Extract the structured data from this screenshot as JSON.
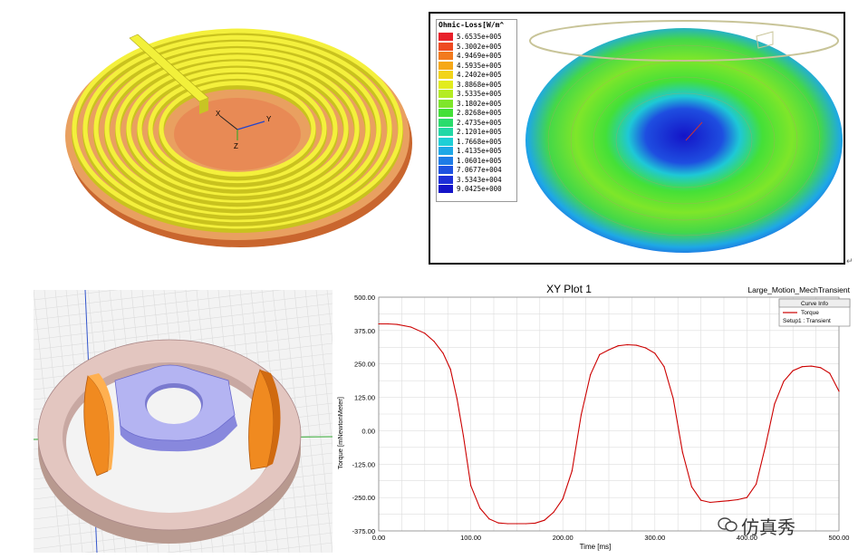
{
  "coil_panel": {
    "axis_labels": {
      "x": "X",
      "y": "Y",
      "z": "Z"
    }
  },
  "ohmic_loss": {
    "title": "Ohmic-Loss[W/m^",
    "legend": [
      {
        "value": "5.6535e+005",
        "color": "#e8202a"
      },
      {
        "value": "5.3002e+005",
        "color": "#ee4a22"
      },
      {
        "value": "4.9469e+005",
        "color": "#f27a1e"
      },
      {
        "value": "4.5935e+005",
        "color": "#f6a818"
      },
      {
        "value": "4.2402e+005",
        "color": "#f2d41a"
      },
      {
        "value": "3.8868e+005",
        "color": "#e2ec1e"
      },
      {
        "value": "3.5335e+005",
        "color": "#b4ec24"
      },
      {
        "value": "3.1802e+005",
        "color": "#7ee62a"
      },
      {
        "value": "2.8268e+005",
        "color": "#44e038"
      },
      {
        "value": "2.4735e+005",
        "color": "#2adc6c"
      },
      {
        "value": "2.1201e+005",
        "color": "#22d8a6"
      },
      {
        "value": "1.7668e+005",
        "color": "#1ecfd6"
      },
      {
        "value": "1.4135e+005",
        "color": "#1ea8e6"
      },
      {
        "value": "1.0601e+005",
        "color": "#1e7ce6"
      },
      {
        "value": "7.0677e+004",
        "color": "#1e52e0"
      },
      {
        "value": "3.5343e+004",
        "color": "#1e30d8"
      },
      {
        "value": "9.0425e+000",
        "color": "#1414c8"
      }
    ]
  },
  "chart_data": {
    "type": "line",
    "title": "XY Plot 1",
    "subtitle": "Large_Motion_MechTransient",
    "xlabel": "Time [ms]",
    "ylabel": "Torque [mNewtonMeter]",
    "xlim": [
      0,
      500
    ],
    "ylim": [
      -375,
      500
    ],
    "x_ticks": [
      "0.00",
      "100.00",
      "200.00",
      "300.00",
      "400.00",
      "500.00"
    ],
    "y_ticks": [
      "500.00",
      "375.00",
      "250.00",
      "125.00",
      "0.00",
      "-125.00",
      "-250.00",
      "-375.00"
    ],
    "legend": {
      "header": "Curve Info",
      "entry": "Torque",
      "entry_sub": "Setup1 : Transient",
      "color": "#cc0000"
    },
    "series": [
      {
        "name": "Torque",
        "x": [
          0,
          10,
          20,
          35,
          50,
          60,
          70,
          78,
          85,
          92,
          100,
          110,
          120,
          130,
          140,
          150,
          160,
          170,
          180,
          190,
          200,
          210,
          220,
          230,
          240,
          250,
          260,
          270,
          280,
          290,
          300,
          310,
          320,
          330,
          340,
          350,
          360,
          370,
          380,
          390,
          400,
          410,
          420,
          430,
          440,
          450,
          460,
          470,
          480,
          490,
          500
        ],
        "values": [
          400,
          400,
          398,
          388,
          365,
          335,
          290,
          230,
          120,
          -20,
          -205,
          -290,
          -330,
          -345,
          -348,
          -348,
          -348,
          -346,
          -335,
          -305,
          -255,
          -150,
          60,
          210,
          285,
          303,
          318,
          322,
          320,
          310,
          290,
          240,
          120,
          -80,
          -210,
          -260,
          -268,
          -265,
          -262,
          -258,
          -250,
          -200,
          -60,
          100,
          185,
          225,
          240,
          242,
          236,
          215,
          148
        ]
      }
    ]
  },
  "watermark": {
    "text": "仿真秀"
  }
}
